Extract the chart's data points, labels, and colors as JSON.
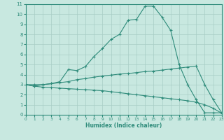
{
  "curve1_x": [
    0,
    1,
    2,
    3,
    4,
    5,
    6,
    7,
    8,
    9,
    10,
    11,
    12,
    13,
    14,
    15,
    16,
    17,
    18,
    19,
    20,
    21,
    22,
    23
  ],
  "curve1_y": [
    3.0,
    2.85,
    3.0,
    3.1,
    3.3,
    4.5,
    4.4,
    4.8,
    5.8,
    6.6,
    7.5,
    8.0,
    9.4,
    9.5,
    10.8,
    10.8,
    9.7,
    8.4,
    5.0,
    3.0,
    1.5,
    0.2,
    0.2,
    0.2
  ],
  "curve2_x": [
    0,
    1,
    2,
    3,
    4,
    5,
    6,
    7,
    8,
    9,
    10,
    11,
    12,
    13,
    14,
    15,
    16,
    17,
    18,
    19,
    20,
    21,
    22,
    23
  ],
  "curve2_y": [
    3.0,
    3.0,
    3.0,
    3.1,
    3.2,
    3.3,
    3.5,
    3.6,
    3.75,
    3.85,
    3.95,
    4.05,
    4.1,
    4.2,
    4.3,
    4.35,
    4.45,
    4.55,
    4.65,
    4.75,
    4.85,
    3.0,
    1.5,
    0.2
  ],
  "curve3_x": [
    0,
    1,
    2,
    3,
    4,
    5,
    6,
    7,
    8,
    9,
    10,
    11,
    12,
    13,
    14,
    15,
    16,
    17,
    18,
    19,
    20,
    21,
    22,
    23
  ],
  "curve3_y": [
    3.0,
    2.85,
    2.75,
    2.7,
    2.65,
    2.6,
    2.55,
    2.5,
    2.45,
    2.4,
    2.3,
    2.2,
    2.1,
    2.0,
    1.9,
    1.8,
    1.7,
    1.6,
    1.5,
    1.4,
    1.25,
    1.0,
    0.65,
    0.15
  ],
  "line_color": "#2e8b7a",
  "bg_color": "#c8e8e0",
  "grid_color": "#a8cdc5",
  "xlabel": "Humidex (Indice chaleur)",
  "xlim": [
    0,
    23
  ],
  "ylim": [
    0,
    11
  ],
  "xticks": [
    0,
    1,
    2,
    3,
    4,
    5,
    6,
    7,
    8,
    9,
    10,
    11,
    12,
    13,
    14,
    15,
    16,
    17,
    18,
    19,
    20,
    21,
    22,
    23
  ],
  "yticks": [
    0,
    1,
    2,
    3,
    4,
    5,
    6,
    7,
    8,
    9,
    10,
    11
  ]
}
